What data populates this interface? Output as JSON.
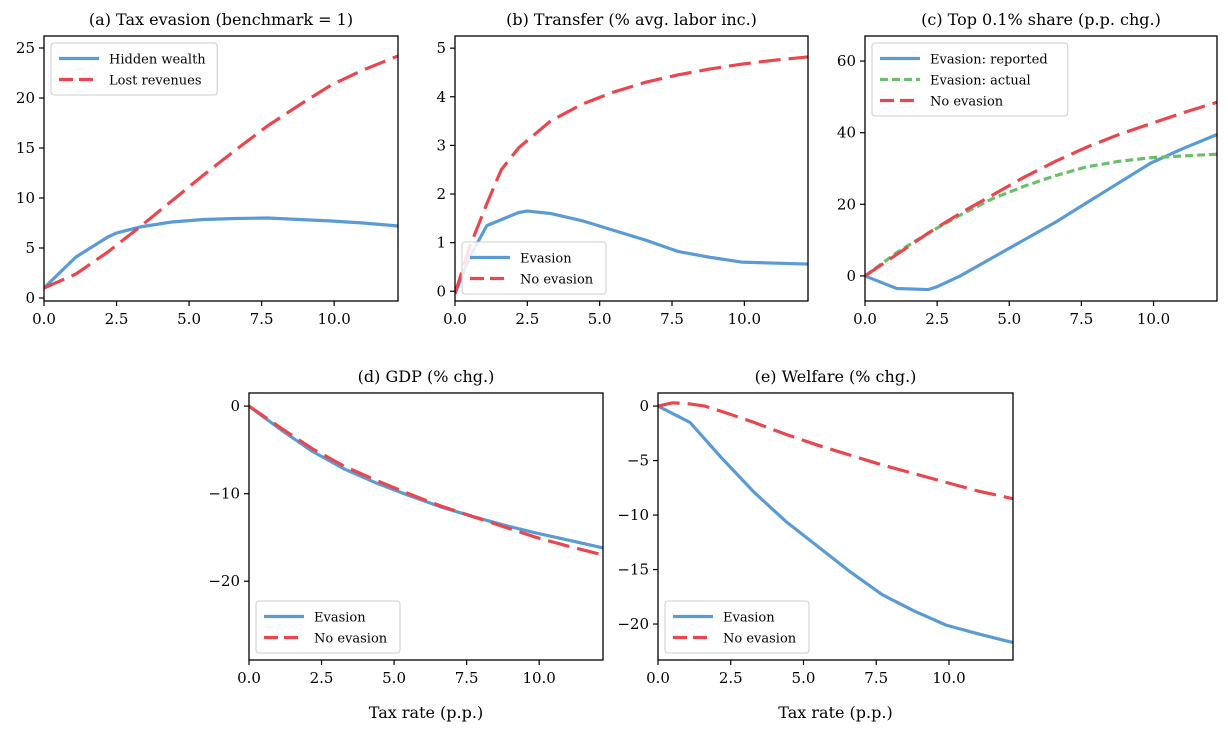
{
  "chart_data": [
    {
      "type": "line",
      "title": "(a) Tax evasion (benchmark = 1)",
      "xlabel": "",
      "xlim": [
        0,
        12.2
      ],
      "ylim": [
        -0.3,
        26.2
      ],
      "xticks": [
        0,
        2.5,
        5,
        7.5,
        10
      ],
      "xtick_labels": [
        "0.0",
        "2.5",
        "5.0",
        "7.5",
        "10.0"
      ],
      "yticks": [
        0,
        5,
        10,
        15,
        20,
        25
      ],
      "ytick_labels": [
        "0",
        "5",
        "10",
        "15",
        "20",
        "25"
      ],
      "legend_position": "upper-left",
      "series": [
        {
          "name": "Hidden wealth",
          "color": "#5b9bd5",
          "style": "solid",
          "x": [
            0,
            1.1,
            2.2,
            2.5,
            3.3,
            4.4,
            5.5,
            6.6,
            7.7,
            8.8,
            9.9,
            11,
            12.2
          ],
          "y": [
            1.0,
            4.1,
            6.1,
            6.5,
            7.1,
            7.6,
            7.85,
            7.95,
            8.0,
            7.85,
            7.7,
            7.5,
            7.2
          ]
        },
        {
          "name": "Lost revenues",
          "color": "#e8474f",
          "style": "dashed",
          "x": [
            0,
            1.1,
            2.2,
            3.3,
            4.4,
            5.5,
            6.6,
            7.7,
            8.8,
            9.9,
            11,
            12.2
          ],
          "y": [
            1.0,
            2.4,
            4.6,
            7.1,
            9.7,
            12.3,
            14.8,
            17.2,
            19.3,
            21.3,
            22.8,
            24.2
          ]
        }
      ]
    },
    {
      "type": "line",
      "title": "(b) Transfer (% avg. labor inc.)",
      "xlabel": "",
      "xlim": [
        0,
        12.2
      ],
      "ylim": [
        -0.2,
        5.25
      ],
      "xticks": [
        0,
        2.5,
        5,
        7.5,
        10
      ],
      "xtick_labels": [
        "0.0",
        "2.5",
        "5.0",
        "7.5",
        "10.0"
      ],
      "yticks": [
        0,
        1,
        2,
        3,
        4,
        5
      ],
      "ytick_labels": [
        "0",
        "1",
        "2",
        "3",
        "4",
        "5"
      ],
      "legend_position": "lower-left",
      "series": [
        {
          "name": "Evasion",
          "color": "#5b9bd5",
          "style": "solid",
          "x": [
            0,
            0.5,
            1.1,
            2.2,
            2.5,
            3.3,
            4.4,
            5.5,
            6.6,
            7.7,
            8.8,
            9.9,
            11,
            12.2
          ],
          "y": [
            -0.05,
            0.7,
            1.35,
            1.62,
            1.65,
            1.6,
            1.45,
            1.25,
            1.05,
            0.82,
            0.7,
            0.6,
            0.58,
            0.56
          ]
        },
        {
          "name": "No evasion",
          "color": "#e8474f",
          "style": "dashed",
          "x": [
            0,
            0.5,
            1.1,
            1.6,
            2.2,
            3.3,
            4.4,
            5.5,
            6.6,
            7.7,
            8.8,
            9.9,
            11,
            12.2
          ],
          "y": [
            -0.05,
            0.9,
            1.8,
            2.5,
            2.95,
            3.5,
            3.85,
            4.1,
            4.3,
            4.45,
            4.57,
            4.67,
            4.75,
            4.82
          ]
        }
      ]
    },
    {
      "type": "line",
      "title": "(c) Top 0.1% share (p.p. chg.)",
      "xlabel": "",
      "xlim": [
        0,
        12.2
      ],
      "ylim": [
        -7,
        67
      ],
      "xticks": [
        0,
        2.5,
        5,
        7.5,
        10
      ],
      "xtick_labels": [
        "0.0",
        "2.5",
        "5.0",
        "7.5",
        "10.0"
      ],
      "yticks": [
        0,
        20,
        40,
        60
      ],
      "ytick_labels": [
        "0",
        "20",
        "40",
        "60"
      ],
      "legend_position": "upper-left",
      "series": [
        {
          "name": "Evasion: reported",
          "color": "#5b9bd5",
          "style": "solid",
          "x": [
            0,
            1.1,
            2.2,
            2.5,
            3.3,
            4.4,
            5.5,
            6.6,
            7.7,
            8.8,
            9.9,
            11,
            12.2
          ],
          "y": [
            0,
            -3.5,
            -3.8,
            -3.0,
            0,
            5,
            10,
            15,
            20.5,
            26,
            31.5,
            35.5,
            39.5
          ]
        },
        {
          "name": "Evasion: actual",
          "color": "#6abf69",
          "style": "dotted",
          "x": [
            0,
            1.1,
            2.2,
            3.3,
            4.4,
            5.5,
            6.6,
            7.7,
            8.8,
            9.9,
            11,
            12.2
          ],
          "y": [
            0,
            6.5,
            12,
            17,
            21.5,
            25,
            28,
            30.5,
            32,
            33,
            33.5,
            34
          ]
        },
        {
          "name": "No evasion",
          "color": "#e8474f",
          "style": "dashed",
          "x": [
            0,
            1.1,
            2.2,
            3.3,
            4.4,
            5.5,
            6.6,
            7.7,
            8.8,
            9.9,
            11,
            12.2
          ],
          "y": [
            0,
            6,
            12,
            17.5,
            22.5,
            27.5,
            32,
            36,
            39.5,
            42.5,
            45.5,
            48.5
          ]
        }
      ]
    },
    {
      "type": "line",
      "title": "(d) GDP (% chg.)",
      "xlabel": "Tax rate (p.p.)",
      "xlim": [
        0,
        12.2
      ],
      "ylim": [
        -29,
        1.5
      ],
      "xticks": [
        0,
        2.5,
        5,
        7.5,
        10
      ],
      "xtick_labels": [
        "0.0",
        "2.5",
        "5.0",
        "7.5",
        "10.0"
      ],
      "yticks": [
        0,
        -10,
        -20
      ],
      "ytick_labels": [
        "0",
        "−10",
        "−20"
      ],
      "legend_position": "lower-left",
      "series": [
        {
          "name": "Evasion",
          "color": "#5b9bd5",
          "style": "solid",
          "x": [
            0,
            1.1,
            2.2,
            3.3,
            4.4,
            5.5,
            6.6,
            7.7,
            8.8,
            9.9,
            11,
            12.2
          ],
          "y": [
            0,
            -2.7,
            -5.2,
            -7.2,
            -8.8,
            -10.2,
            -11.5,
            -12.6,
            -13.6,
            -14.5,
            -15.3,
            -16.2
          ]
        },
        {
          "name": "No evasion",
          "color": "#e8474f",
          "style": "dashed",
          "x": [
            0,
            1.1,
            2.2,
            3.3,
            4.4,
            5.5,
            6.6,
            7.7,
            8.8,
            9.9,
            11,
            12.2
          ],
          "y": [
            0,
            -2.5,
            -4.9,
            -6.9,
            -8.5,
            -10.0,
            -11.4,
            -12.6,
            -13.8,
            -15.0,
            -16.0,
            -17.0
          ]
        }
      ]
    },
    {
      "type": "line",
      "title": "(e) Welfare (% chg.)",
      "xlabel": "Tax rate (p.p.)",
      "xlim": [
        0,
        12.2
      ],
      "ylim": [
        -23.3,
        1.2
      ],
      "xticks": [
        0,
        2.5,
        5,
        7.5,
        10
      ],
      "xtick_labels": [
        "0.0",
        "2.5",
        "5.0",
        "7.5",
        "10.0"
      ],
      "yticks": [
        0,
        -5,
        -10,
        -15,
        -20
      ],
      "ytick_labels": [
        "0",
        "−5",
        "−10",
        "−15",
        "−20"
      ],
      "legend_position": "lower-left",
      "series": [
        {
          "name": "Evasion",
          "color": "#5b9bd5",
          "style": "solid",
          "x": [
            0,
            1.1,
            2.2,
            3.3,
            4.4,
            5.5,
            6.6,
            7.7,
            8.8,
            9.9,
            11,
            12.2
          ],
          "y": [
            0,
            -1.5,
            -4.8,
            -7.9,
            -10.6,
            -12.9,
            -15.2,
            -17.3,
            -18.8,
            -20.1,
            -20.9,
            -21.7
          ]
        },
        {
          "name": "No evasion",
          "color": "#e8474f",
          "style": "dashed",
          "x": [
            0,
            0.5,
            1.1,
            1.6,
            2.2,
            3.3,
            4.4,
            5.5,
            6.6,
            7.7,
            8.8,
            9.9,
            11,
            12.2
          ],
          "y": [
            0,
            0.3,
            0.2,
            0,
            -0.5,
            -1.5,
            -2.6,
            -3.6,
            -4.5,
            -5.4,
            -6.2,
            -7.0,
            -7.8,
            -8.5
          ]
        }
      ]
    }
  ]
}
